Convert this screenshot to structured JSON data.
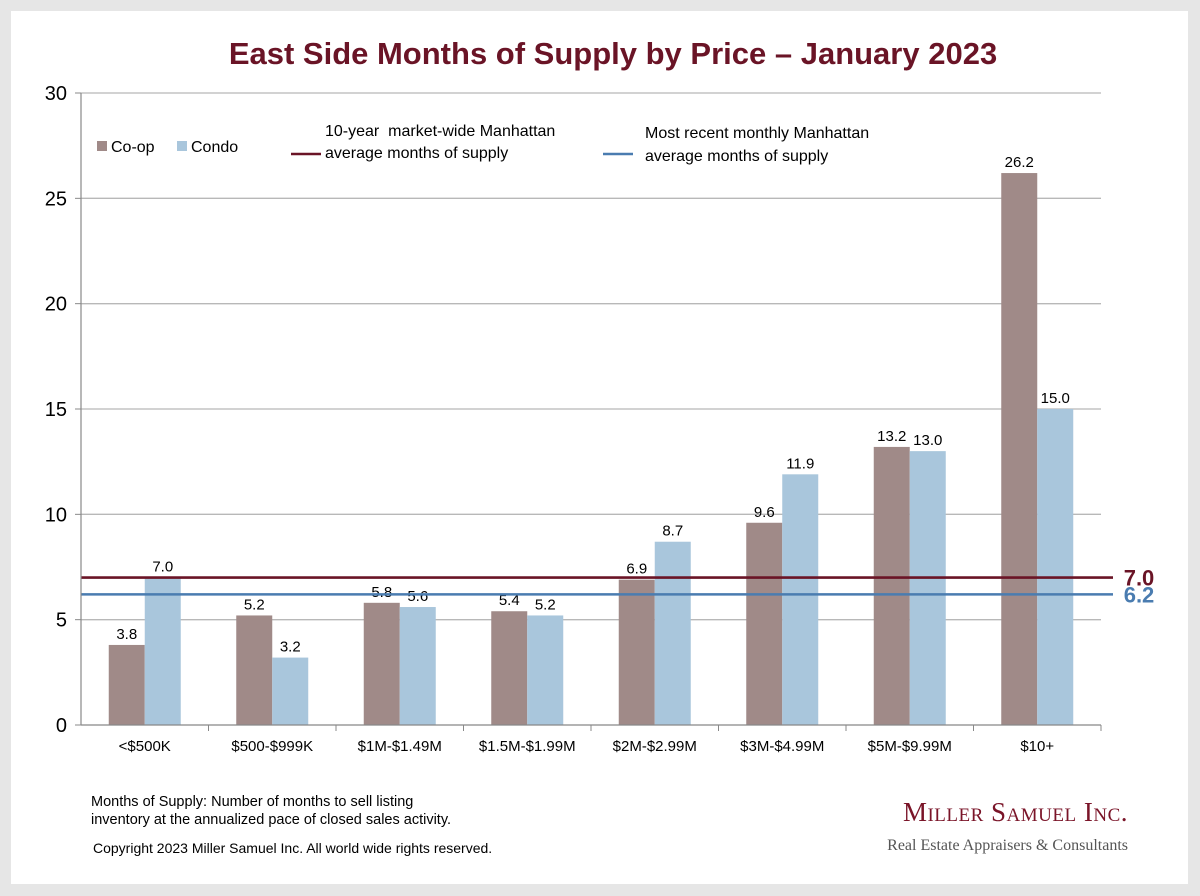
{
  "chart_data": {
    "type": "bar",
    "title": "East Side Months of Supply by Price – January 2023",
    "categories": [
      "<$500K",
      "$500-$999K",
      "$1M-$1.49M",
      "$1.5M-$1.99M",
      "$2M-$2.99M",
      "$3M-$4.99M",
      "$5M-$9.99M",
      "$10+"
    ],
    "series": [
      {
        "name": "Co-op",
        "color": "#a08a88",
        "values": [
          3.8,
          5.2,
          5.8,
          5.4,
          6.9,
          9.6,
          13.2,
          26.2
        ],
        "labels": [
          "3.8",
          "5.2",
          "5.8",
          "5.4",
          "6.9",
          "9.6",
          "13.2",
          "26.2"
        ]
      },
      {
        "name": "Condo",
        "color": "#a9c6dc",
        "values": [
          7.0,
          3.2,
          5.6,
          5.2,
          8.7,
          11.9,
          13.0,
          15.0
        ],
        "labels": [
          "7.0",
          "3.2",
          "5.6",
          "5.2",
          "8.7",
          "11.9",
          "13.0",
          "15.0"
        ]
      }
    ],
    "ylim": [
      0,
      30
    ],
    "yticks": [
      "0",
      "5",
      "10",
      "15",
      "20",
      "25",
      "30"
    ],
    "grid": true,
    "reference_lines": [
      {
        "name": "10-year  market-wide Manhattan average months of supply",
        "legend_lines": [
          "10-year  market-wide Manhattan",
          "average months of supply"
        ],
        "value": 7.0,
        "label": "7.0",
        "color": "#6a1426"
      },
      {
        "name": "Most recent monthly Manhattan average months of supply",
        "legend_lines": [
          "Most recent monthly Manhattan",
          "average months of supply"
        ],
        "value": 6.2,
        "label": "6.2",
        "color": "#4a7cb0"
      }
    ],
    "legend_position": "top"
  },
  "footer": {
    "note_line1": "Months of Supply: Number of months to sell listing",
    "note_line2": "inventory at the annualized pace of closed sales activity.",
    "copyright": "Copyright 2023 Miller Samuel Inc.  All world wide rights reserved.",
    "brand_name": "Miller Samuel Inc.",
    "brand_tagline": "Real Estate Appraisers & Consultants"
  }
}
